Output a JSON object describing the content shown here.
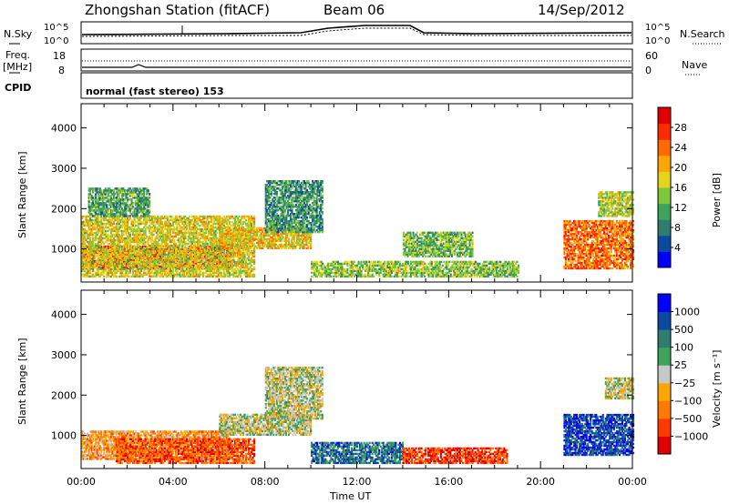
{
  "header": {
    "title": "Zhongshan Station (fitACF)",
    "beam": "Beam 06",
    "date": "14/Sep/2012"
  },
  "panels": {
    "nsky_label": "N.Sky",
    "nsearch_label": "N.Search",
    "nsky_ticks": [
      "10^5",
      "10^0"
    ],
    "nsearch_ticks": [
      "10^5",
      "10^0"
    ],
    "freq_label_1": "Freq.",
    "freq_label_2": "[MHz]",
    "freq_ticks": [
      "18",
      "8"
    ],
    "nave_label": "Nave",
    "nave_ticks": [
      "60",
      "0"
    ],
    "cpid_label": "CPID",
    "cpid_text": "normal (fast stereo) 153"
  },
  "chart_data": [
    {
      "type": "heatmap",
      "title": "",
      "xlabel": "Time UT",
      "ylabel": "Slant Range [km]",
      "x_ticks": [
        "00:00",
        "04:00",
        "08:00",
        "12:00",
        "16:00",
        "20:00",
        "00:00"
      ],
      "x_range_hours": [
        0,
        24
      ],
      "y_ticks": [
        1000,
        2000,
        3000,
        4000
      ],
      "ylim": [
        180,
        4600
      ],
      "colorbar": {
        "label": "Power [dB]",
        "ticks": [
          "28",
          "24",
          "20",
          "16",
          "12",
          "8",
          "4"
        ],
        "colors": [
          "#0000ff",
          "#0a4aa0",
          "#2e7d6e",
          "#3fa35b",
          "#7dc83a",
          "#e5d51a",
          "#ffa600",
          "#ff6a00",
          "#ff2a00",
          "#e00000"
        ]
      },
      "regions": [
        {
          "t0": 0.0,
          "t1": 6.5,
          "r0": 500,
          "r1": 1050,
          "level": 0.92
        },
        {
          "t0": 0.0,
          "t1": 7.5,
          "r0": 300,
          "r1": 1800,
          "level": 0.55
        },
        {
          "t0": 0.3,
          "t1": 3.0,
          "r0": 1800,
          "r1": 2500,
          "level": 0.35
        },
        {
          "t0": 6.0,
          "t1": 10.0,
          "r0": 1000,
          "r1": 1500,
          "level": 0.6
        },
        {
          "t0": 8.0,
          "t1": 10.5,
          "r0": 1400,
          "r1": 2700,
          "level": 0.3
        },
        {
          "t0": 10.0,
          "t1": 19.0,
          "r0": 300,
          "r1": 700,
          "level": 0.45
        },
        {
          "t0": 14.0,
          "t1": 17.0,
          "r0": 800,
          "r1": 1400,
          "level": 0.4
        },
        {
          "t0": 21.0,
          "t1": 24.0,
          "r0": 500,
          "r1": 1700,
          "level": 0.75
        },
        {
          "t0": 22.5,
          "t1": 24.0,
          "r0": 1800,
          "r1": 2400,
          "level": 0.5
        }
      ]
    },
    {
      "type": "heatmap",
      "title": "",
      "xlabel": "Time UT",
      "ylabel": "Slant Range [km]",
      "x_ticks": [
        "00:00",
        "04:00",
        "08:00",
        "12:00",
        "16:00",
        "20:00",
        "00:00"
      ],
      "x_range_hours": [
        0,
        24
      ],
      "y_ticks": [
        1000,
        2000,
        3000,
        4000
      ],
      "ylim": [
        180,
        4600
      ],
      "colorbar": {
        "label": "Velocity [m s⁻¹]",
        "ticks": [
          "1000",
          "500",
          "100",
          "25",
          "−25",
          "−100",
          "−500",
          "−1000"
        ],
        "colors": [
          "#e00000",
          "#ff3a00",
          "#ff7a00",
          "#ffa600",
          "#c8c8c8",
          "#3fa35b",
          "#2e7d6e",
          "#0a4aa0",
          "#0000ff"
        ]
      },
      "regions": [
        {
          "t0": 0.0,
          "t1": 6.5,
          "r0": 400,
          "r1": 1100,
          "level": 0.35
        },
        {
          "t0": 1.5,
          "t1": 7.5,
          "r0": 300,
          "r1": 900,
          "level": 0.2
        },
        {
          "t0": 6.0,
          "t1": 10.0,
          "r0": 1000,
          "r1": 1500,
          "level": 0.5
        },
        {
          "t0": 8.0,
          "t1": 10.5,
          "r0": 1400,
          "r1": 2700,
          "level": 0.5
        },
        {
          "t0": 10.0,
          "t1": 14.0,
          "r0": 300,
          "r1": 800,
          "level": 0.75
        },
        {
          "t0": 14.0,
          "t1": 18.5,
          "r0": 300,
          "r1": 700,
          "level": 0.15
        },
        {
          "t0": 21.0,
          "t1": 24.0,
          "r0": 500,
          "r1": 1500,
          "level": 0.85
        },
        {
          "t0": 22.8,
          "t1": 24.0,
          "r0": 1900,
          "r1": 2400,
          "level": 0.5
        }
      ]
    }
  ]
}
